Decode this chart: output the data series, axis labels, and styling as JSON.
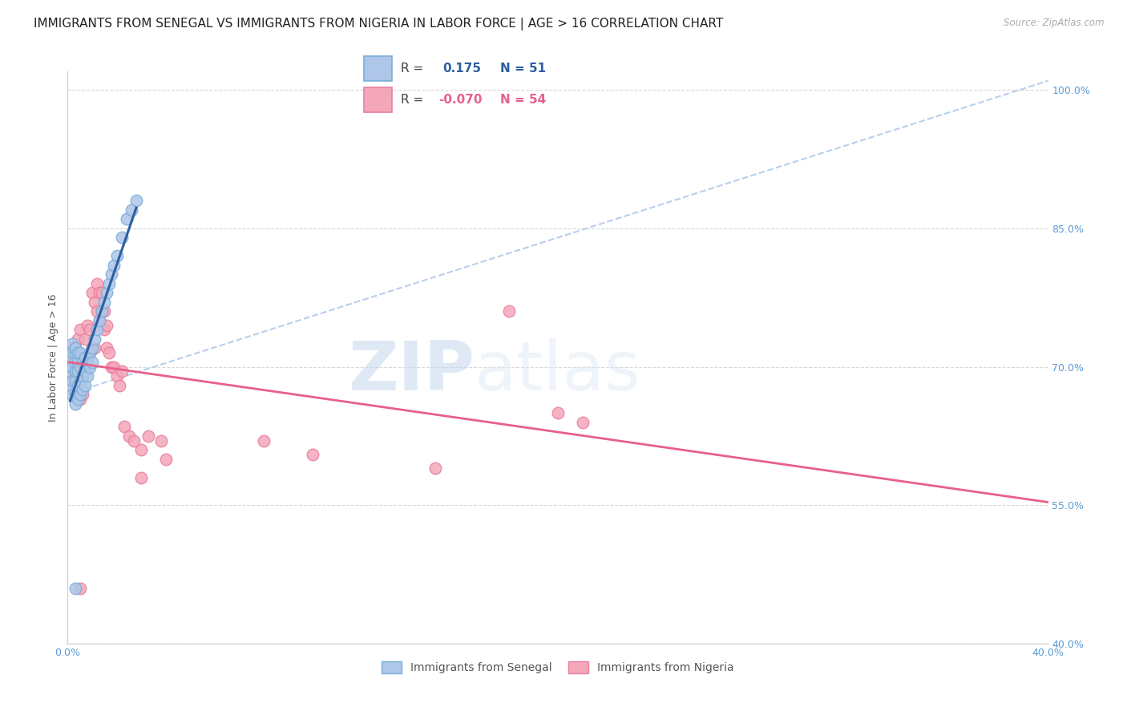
{
  "title": "IMMIGRANTS FROM SENEGAL VS IMMIGRANTS FROM NIGERIA IN LABOR FORCE | AGE > 16 CORRELATION CHART",
  "source": "Source: ZipAtlas.com",
  "ylabel": "In Labor Force | Age > 16",
  "xlim": [
    0.0,
    0.4
  ],
  "ylim": [
    0.4,
    1.02
  ],
  "xticks": [
    0.0,
    0.05,
    0.1,
    0.15,
    0.2,
    0.25,
    0.3,
    0.35,
    0.4
  ],
  "xticklabels": [
    "0.0%",
    "",
    "",
    "",
    "",
    "",
    "",
    "",
    "40.0%"
  ],
  "yticks": [
    0.4,
    0.55,
    0.7,
    0.85,
    1.0
  ],
  "yticklabels": [
    "40.0%",
    "55.0%",
    "70.0%",
    "85.0%",
    "100.0%"
  ],
  "senegal_color": "#aec6e8",
  "nigeria_color": "#f4a7b9",
  "senegal_edge": "#7aaed6",
  "nigeria_edge": "#e87fa0",
  "regression_senegal_color": "#2e5fa3",
  "regression_nigeria_color": "#e8608a",
  "dashed_line_color": "#aec6e8",
  "R_senegal": 0.175,
  "N_senegal": 51,
  "R_nigeria": -0.07,
  "N_nigeria": 54,
  "legend_R_color": "#2e5fa3",
  "legend_R2_color": "#e8608a",
  "watermark_zip": "ZIP",
  "watermark_atlas": "atlas",
  "senegal_x": [
    0.001,
    0.001,
    0.001,
    0.002,
    0.002,
    0.002,
    0.002,
    0.002,
    0.003,
    0.003,
    0.003,
    0.003,
    0.003,
    0.003,
    0.003,
    0.004,
    0.004,
    0.004,
    0.004,
    0.004,
    0.005,
    0.005,
    0.005,
    0.005,
    0.006,
    0.006,
    0.006,
    0.007,
    0.007,
    0.007,
    0.008,
    0.008,
    0.009,
    0.009,
    0.01,
    0.01,
    0.011,
    0.012,
    0.013,
    0.014,
    0.015,
    0.016,
    0.017,
    0.018,
    0.019,
    0.02,
    0.022,
    0.024,
    0.026,
    0.028,
    0.003
  ],
  "senegal_y": [
    0.68,
    0.695,
    0.71,
    0.67,
    0.685,
    0.7,
    0.715,
    0.725,
    0.66,
    0.672,
    0.685,
    0.695,
    0.705,
    0.715,
    0.72,
    0.665,
    0.68,
    0.695,
    0.705,
    0.715,
    0.67,
    0.685,
    0.7,
    0.715,
    0.675,
    0.69,
    0.705,
    0.68,
    0.695,
    0.71,
    0.69,
    0.705,
    0.7,
    0.715,
    0.705,
    0.72,
    0.73,
    0.74,
    0.75,
    0.76,
    0.77,
    0.78,
    0.79,
    0.8,
    0.81,
    0.82,
    0.84,
    0.86,
    0.87,
    0.88,
    0.46
  ],
  "nigeria_x": [
    0.001,
    0.001,
    0.002,
    0.002,
    0.003,
    0.003,
    0.004,
    0.004,
    0.005,
    0.005,
    0.005,
    0.006,
    0.006,
    0.007,
    0.007,
    0.008,
    0.008,
    0.009,
    0.009,
    0.01,
    0.01,
    0.011,
    0.011,
    0.012,
    0.012,
    0.013,
    0.013,
    0.014,
    0.014,
    0.015,
    0.015,
    0.016,
    0.016,
    0.017,
    0.018,
    0.019,
    0.02,
    0.021,
    0.022,
    0.023,
    0.025,
    0.027,
    0.03,
    0.033,
    0.038,
    0.04,
    0.08,
    0.1,
    0.15,
    0.18,
    0.2,
    0.21,
    0.005,
    0.03
  ],
  "nigeria_y": [
    0.685,
    0.715,
    0.69,
    0.72,
    0.695,
    0.72,
    0.7,
    0.73,
    0.665,
    0.705,
    0.74,
    0.67,
    0.71,
    0.705,
    0.73,
    0.71,
    0.745,
    0.715,
    0.74,
    0.72,
    0.78,
    0.72,
    0.77,
    0.76,
    0.79,
    0.75,
    0.78,
    0.76,
    0.78,
    0.74,
    0.76,
    0.72,
    0.745,
    0.715,
    0.7,
    0.7,
    0.69,
    0.68,
    0.695,
    0.635,
    0.625,
    0.62,
    0.61,
    0.625,
    0.62,
    0.6,
    0.62,
    0.605,
    0.59,
    0.76,
    0.65,
    0.64,
    0.46,
    0.58
  ],
  "background_color": "#ffffff",
  "grid_color": "#d8d8d8",
  "title_fontsize": 11,
  "axis_label_fontsize": 9,
  "tick_fontsize": 9
}
